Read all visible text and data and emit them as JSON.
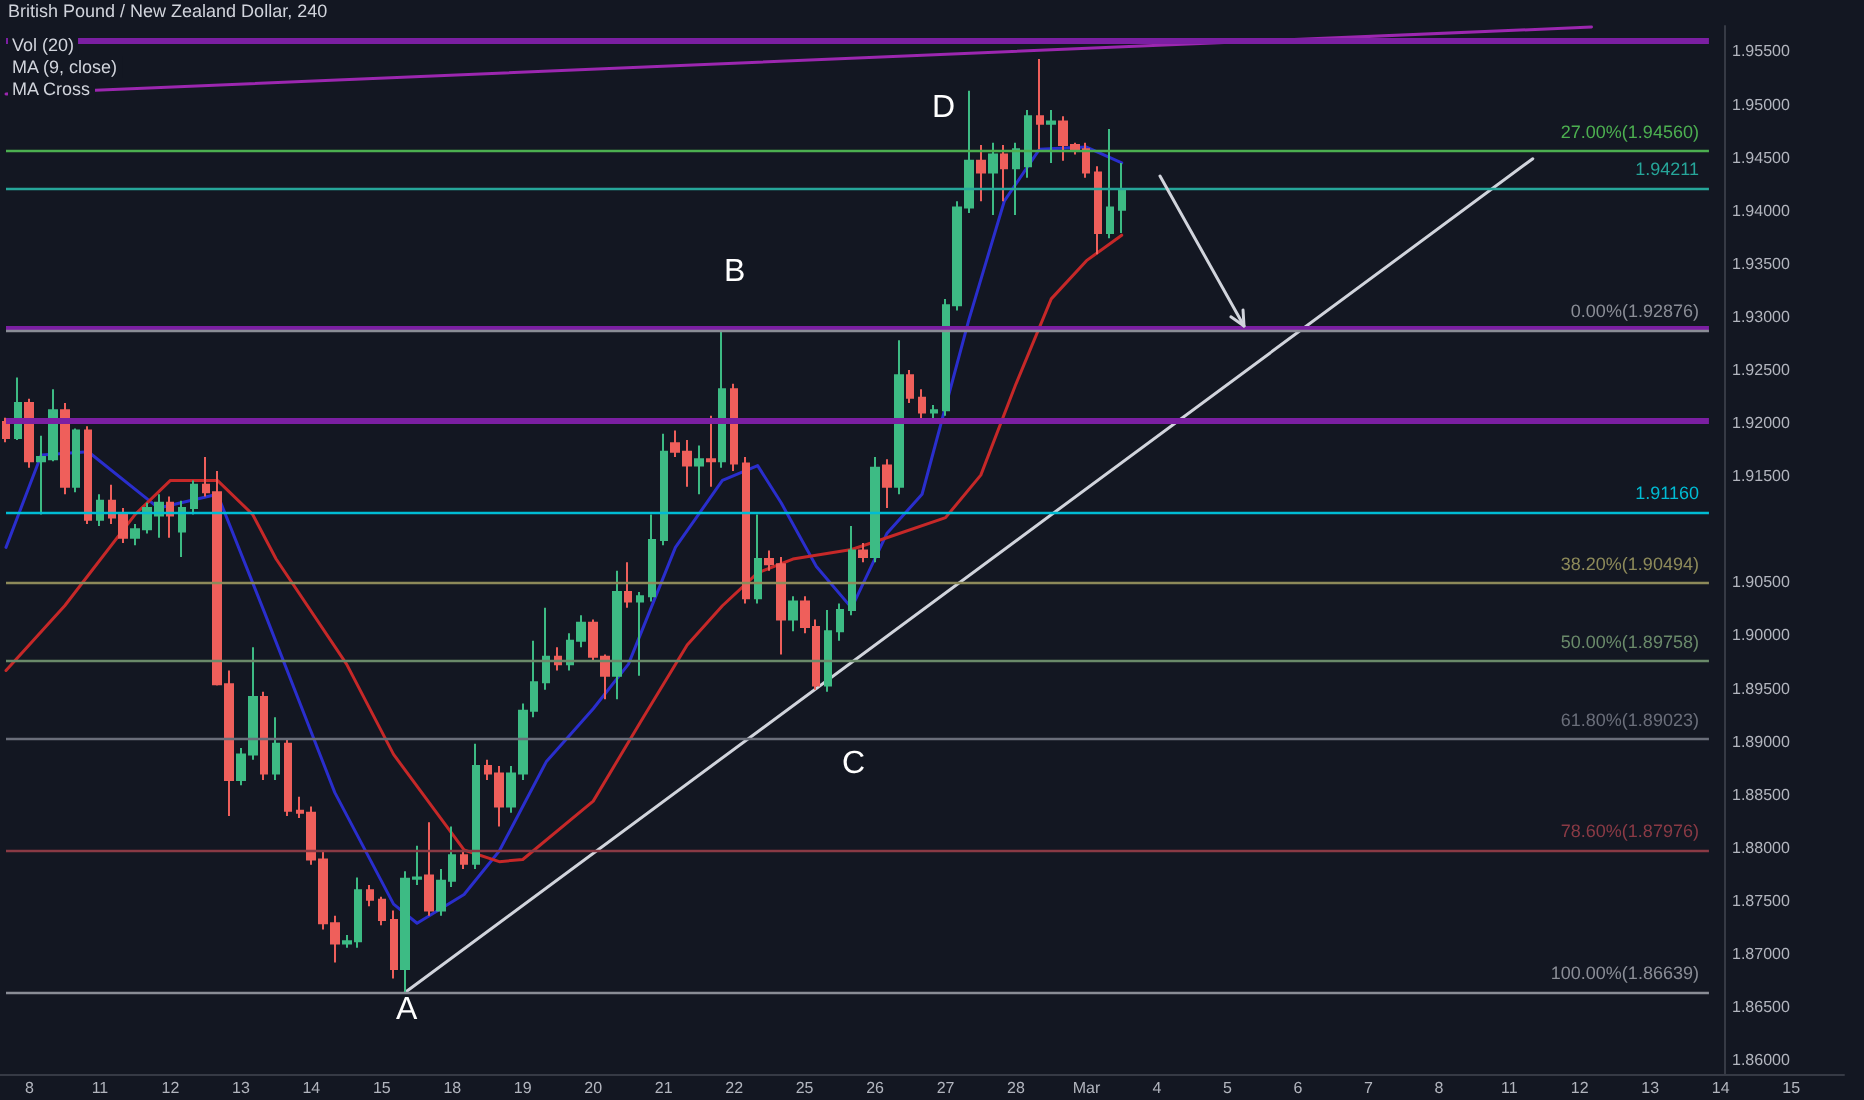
{
  "chart_data": {
    "type": "candlestick",
    "title": "British Pound / New Zealand Dollar, 240",
    "annotations": [
      "Vol (20)",
      "MA (9, close)",
      "MA Cross",
      "A",
      "B",
      "C",
      "D"
    ],
    "categories": [
      null,
      null,
      "8",
      null,
      null,
      null,
      null,
      null,
      "11",
      null,
      null,
      null,
      null,
      null,
      "12",
      null,
      null,
      null,
      null,
      null,
      "13",
      null,
      null,
      null,
      null,
      null,
      "14",
      null,
      null,
      null,
      null,
      null,
      "15",
      null,
      null,
      null,
      null,
      null,
      "18",
      null,
      null,
      null,
      null,
      null,
      "19",
      null,
      null,
      null,
      null,
      null,
      "20",
      null,
      null,
      null,
      null,
      null,
      "21",
      null,
      null,
      null,
      null,
      null,
      "22",
      null,
      null,
      null,
      null,
      null,
      "25",
      null,
      null,
      null,
      null,
      null,
      "26",
      null,
      null,
      null,
      null,
      null,
      "27",
      null,
      null,
      null,
      null,
      null,
      "28",
      null,
      null,
      null,
      null,
      null,
      "Mar",
      null,
      null,
      null,
      null,
      null,
      "4",
      null,
      null,
      null,
      null,
      null,
      "5",
      null,
      null,
      null,
      null,
      null,
      "6",
      null,
      null,
      null,
      null,
      null,
      "7",
      null,
      null,
      null,
      null,
      null,
      "8",
      null,
      null,
      null,
      null,
      null,
      "11",
      null,
      null,
      null,
      null,
      null,
      "12",
      null,
      null,
      null,
      null,
      null,
      "13",
      null,
      null,
      null,
      null,
      null,
      "14",
      null,
      null,
      null,
      null,
      null,
      "15",
      null,
      null,
      null,
      null
    ],
    "ylim": [
      1.8587,
      1.9574
    ],
    "yticks": [
      {
        "value": 1.86,
        "label": "1.86000"
      },
      {
        "value": 1.865,
        "label": "1.86500"
      },
      {
        "value": 1.87,
        "label": "1.87000"
      },
      {
        "value": 1.875,
        "label": "1.87500"
      },
      {
        "value": 1.88,
        "label": "1.88000"
      },
      {
        "value": 1.885,
        "label": "1.88500"
      },
      {
        "value": 1.89,
        "label": "1.89000"
      },
      {
        "value": 1.895,
        "label": "1.89500"
      },
      {
        "value": 1.9,
        "label": "1.90000"
      },
      {
        "value": 1.905,
        "label": "1.90500"
      },
      {
        "value": 1.915,
        "label": "1.91500"
      },
      {
        "value": 1.92,
        "label": "1.92000"
      },
      {
        "value": 1.925,
        "label": "1.92500"
      },
      {
        "value": 1.93,
        "label": "1.93000"
      },
      {
        "value": 1.935,
        "label": "1.93500"
      },
      {
        "value": 1.94,
        "label": "1.94000"
      },
      {
        "value": 1.945,
        "label": "1.94500"
      },
      {
        "value": 1.95,
        "label": "1.95000"
      },
      {
        "value": 1.955,
        "label": "1.95500"
      }
    ],
    "marker": "none",
    "line_style": "solid",
    "ref_lines": [
      {
        "axis": "y",
        "value": 1.9561,
        "color": "#7b1fa2"
      },
      {
        "axis": "y",
        "value": 1.9289,
        "color": "#7b1fa2"
      },
      {
        "axis": "y",
        "value": 1.9203,
        "color": "#7b1fa2"
      },
      {
        "axis": "y",
        "value": 1.9116,
        "label": "1.91160",
        "color": "#00bcd4"
      },
      {
        "axis": "y",
        "value": 1.94211,
        "label": "1.94211",
        "color": "#26a69a"
      },
      {
        "axis": "y",
        "value": 1.9456,
        "label": "27.00%(1.94560)",
        "color": "#4caf50"
      },
      {
        "axis": "y",
        "value": 1.92876,
        "label": "0.00%(1.92876)",
        "color": "#8a8d96"
      },
      {
        "axis": "y",
        "value": 1.90494,
        "label": "38.20%(1.90494)",
        "color": "#8d8a5a"
      },
      {
        "axis": "y",
        "value": 1.89758,
        "label": "50.00%(1.89758)",
        "color": "#6a8a6a"
      },
      {
        "axis": "y",
        "value": 1.89023,
        "label": "61.80%(1.89023)",
        "color": "#6a6e7a"
      },
      {
        "axis": "y",
        "value": 1.87976,
        "label": "78.60%(1.87976)",
        "color": "#8a3a45"
      },
      {
        "axis": "y",
        "value": 1.86639,
        "label": "100.00%(1.86639)",
        "color": "#8a8d96"
      }
    ],
    "series": [
      {
        "type": "candlestick",
        "colors": [
          "#ef5f5b",
          "#3dbb84",
          "#ef5f5b",
          "#3dbb84",
          "#3dbb84",
          "#ef5f5b",
          "#3dbb84",
          "#ef5f5b",
          "#3dbb84",
          "#ef5f5b",
          "#ef5f5b",
          "#3dbb84",
          "#3dbb84",
          "#3dbb84",
          "#ef5f5b",
          "#3dbb84",
          "#3dbb84",
          "#ef5f5b",
          "#ef5f5b",
          "#ef5f5b",
          "#3dbb84",
          "#3dbb84",
          "#ef5f5b",
          "#3dbb84",
          "#ef5f5b",
          "#ef5f5b",
          "#ef5f5b",
          "#ef5f5b",
          "#ef5f5b",
          "#3dbb84",
          "#3dbb84",
          "#ef5f5b",
          "#ef5f5b",
          "#ef5f5b",
          "#3dbb84",
          "#3dbb84",
          "#ef5f5b",
          "#3dbb84",
          "#3dbb84",
          "#ef5f5b",
          "#3dbb84",
          "#ef5f5b",
          "#ef5f5b",
          "#3dbb84",
          "#3dbb84",
          "#3dbb84",
          "#3dbb84",
          "#ef5f5b",
          "#3dbb84",
          "#3dbb84",
          "#ef5f5b",
          "#ef5f5b",
          "#3dbb84",
          "#ef5f5b",
          "#3dbb84",
          "#3dbb84",
          "#3dbb84",
          "#ef5f5b",
          "#ef5f5b",
          "#3dbb84",
          "#ef5f5b",
          "#3dbb84",
          "#ef5f5b",
          "#ef5f5b",
          "#3dbb84",
          "#ef5f5b",
          "#ef5f5b",
          "#3dbb84",
          "#ef5f5b",
          "#ef5f5b",
          "#3dbb84",
          "#3dbb84",
          "#3dbb84",
          "#ef5f5b",
          "#3dbb84",
          "#ef5f5b",
          "#3dbb84",
          "#ef5f5b",
          "#ef5f5b",
          "#3dbb84",
          "#3dbb84",
          "#3dbb84",
          "#3dbb84",
          "#ef5f5b",
          "#3dbb84",
          "#ef5f5b",
          "#3dbb84",
          "#3dbb84",
          "#ef5f5b",
          "#3dbb84",
          "#ef5f5b",
          "#ef5f5b",
          "#ef5f5b",
          "#ef5f5b",
          "#3dbb84",
          "#3dbb84",
          null,
          null,
          null,
          null,
          null,
          null,
          null,
          null,
          null,
          null,
          null,
          null,
          null,
          null,
          null,
          null,
          null,
          null,
          null,
          null,
          null,
          null,
          null,
          null,
          null,
          null,
          null,
          null,
          null,
          null,
          null,
          null,
          null,
          null,
          null,
          null,
          null,
          null,
          null,
          null,
          null,
          null,
          null,
          null,
          null,
          null,
          null,
          null,
          null,
          null,
          null,
          null,
          null,
          null,
          null,
          null,
          null,
          null,
          null,
          null,
          null
        ],
        "ohlc": [
          [
            1.9201,
            1.9205,
            1.9182,
            1.9186
          ],
          [
            1.9186,
            1.9243,
            1.9184,
            1.9219
          ],
          [
            1.9219,
            1.9223,
            1.9158,
            1.9164
          ],
          [
            1.9164,
            1.9188,
            1.9114,
            1.9168
          ],
          [
            1.9166,
            1.9232,
            1.9164,
            1.9212
          ],
          [
            1.9212,
            1.9219,
            1.9133,
            1.914
          ],
          [
            1.914,
            1.9195,
            1.9135,
            1.9193
          ],
          [
            1.9193,
            1.9197,
            1.9105,
            1.9109
          ],
          [
            1.9109,
            1.9133,
            1.9103,
            1.9127
          ],
          [
            1.9127,
            1.9142,
            1.9105,
            1.9111
          ],
          [
            1.9114,
            1.912,
            1.9087,
            1.9092
          ],
          [
            1.9092,
            1.9105,
            1.9085,
            1.91
          ],
          [
            1.91,
            1.9125,
            1.9096,
            1.912
          ],
          [
            1.9113,
            1.9133,
            1.9092,
            1.9125
          ],
          [
            1.9125,
            1.9131,
            1.9092,
            1.9113
          ],
          [
            1.9098,
            1.9127,
            1.9074,
            1.912
          ],
          [
            1.912,
            1.9146,
            1.9114,
            1.9142
          ],
          [
            1.9142,
            1.9168,
            1.9131,
            1.9135
          ],
          [
            1.9135,
            1.9155,
            1.8953,
            1.8954
          ],
          [
            1.8954,
            1.8967,
            1.883,
            1.8864
          ],
          [
            1.8864,
            1.8894,
            1.8859,
            1.8888
          ],
          [
            1.8888,
            1.8989,
            1.8883,
            1.8942
          ],
          [
            1.8942,
            1.8947,
            1.8864,
            1.887
          ],
          [
            1.887,
            1.8923,
            1.8864,
            1.8898
          ],
          [
            1.8898,
            1.8903,
            1.883,
            1.8835
          ],
          [
            1.8835,
            1.8848,
            1.8828,
            1.8833
          ],
          [
            1.8833,
            1.8839,
            1.8784,
            1.8789
          ],
          [
            1.8789,
            1.8798,
            1.8723,
            1.8729
          ],
          [
            1.8729,
            1.8736,
            1.8692,
            1.871
          ],
          [
            1.871,
            1.8718,
            1.8706,
            1.8712
          ],
          [
            1.8712,
            1.8772,
            1.8706,
            1.876
          ],
          [
            1.876,
            1.8765,
            1.8745,
            1.8751
          ],
          [
            1.8751,
            1.8754,
            1.8727,
            1.8732
          ],
          [
            1.8732,
            1.8741,
            1.8677,
            1.8686
          ],
          [
            1.8686,
            1.8778,
            1.8664,
            1.8771
          ],
          [
            1.8771,
            1.8802,
            1.8765,
            1.8772
          ],
          [
            1.8774,
            1.8824,
            1.8736,
            1.8741
          ],
          [
            1.8741,
            1.878,
            1.8736,
            1.8769
          ],
          [
            1.8769,
            1.882,
            1.8763,
            1.8793
          ],
          [
            1.8793,
            1.8798,
            1.878,
            1.8785
          ],
          [
            1.8785,
            1.8898,
            1.878,
            1.8877
          ],
          [
            1.8877,
            1.8883,
            1.8864,
            1.887
          ],
          [
            1.887,
            1.8877,
            1.882,
            1.8839
          ],
          [
            1.8839,
            1.8877,
            1.8833,
            1.887
          ],
          [
            1.887,
            1.8936,
            1.8864,
            1.8929
          ],
          [
            1.8929,
            1.8995,
            1.8923,
            1.8956
          ],
          [
            1.8956,
            1.9026,
            1.8949,
            1.898
          ],
          [
            1.898,
            1.8989,
            1.8967,
            1.8973
          ],
          [
            1.8973,
            1.9002,
            1.8967,
            1.8995
          ],
          [
            1.8995,
            1.9019,
            1.8989,
            1.9012
          ],
          [
            1.9012,
            1.9015,
            1.8975,
            1.898
          ],
          [
            1.898,
            1.8982,
            1.894,
            1.8962
          ],
          [
            1.8962,
            1.9061,
            1.894,
            1.9041
          ],
          [
            1.9041,
            1.9069,
            1.9026,
            1.9032
          ],
          [
            1.9032,
            1.9041,
            1.8962,
            1.9037
          ],
          [
            1.9037,
            1.9114,
            1.9032,
            1.909
          ],
          [
            1.909,
            1.919,
            1.9085,
            1.9173
          ],
          [
            1.9181,
            1.9193,
            1.9168,
            1.9173
          ],
          [
            1.9173,
            1.9184,
            1.914,
            1.916
          ],
          [
            1.916,
            1.9179,
            1.9133,
            1.9166
          ],
          [
            1.9166,
            1.9207,
            1.914,
            1.9164
          ],
          [
            1.9164,
            1.9288,
            1.9158,
            1.9232
          ],
          [
            1.9232,
            1.9237,
            1.9155,
            1.9162
          ],
          [
            1.9162,
            1.9168,
            1.903,
            1.9035
          ],
          [
            1.9035,
            1.9114,
            1.903,
            1.9072
          ],
          [
            1.9072,
            1.908,
            1.9061,
            1.9067
          ],
          [
            1.9067,
            1.9074,
            1.8982,
            1.9015
          ],
          [
            1.9015,
            1.9037,
            1.9004,
            1.9032
          ],
          [
            1.9032,
            1.9037,
            1.9002,
            1.9008
          ],
          [
            1.9008,
            1.9015,
            1.8949,
            1.8953
          ],
          [
            1.8953,
            1.9024,
            1.8947,
            1.9004
          ],
          [
            1.9004,
            1.903,
            1.8995,
            1.9024
          ],
          [
            1.9024,
            1.9103,
            1.9019,
            1.908
          ],
          [
            1.908,
            1.9087,
            1.9069,
            1.9074
          ],
          [
            1.9074,
            1.9168,
            1.9069,
            1.9158
          ],
          [
            1.916,
            1.9166,
            1.912,
            1.914
          ],
          [
            1.914,
            1.9278,
            1.9133,
            1.9245
          ],
          [
            1.9245,
            1.925,
            1.9219,
            1.9224
          ],
          [
            1.9224,
            1.9232,
            1.9201,
            1.921
          ],
          [
            1.921,
            1.9217,
            1.9201,
            1.9212
          ],
          [
            1.9212,
            1.9317,
            1.9207,
            1.9311
          ],
          [
            1.9311,
            1.9409,
            1.9306,
            1.9403
          ],
          [
            1.9403,
            1.9513,
            1.9398,
            1.9447
          ],
          [
            1.9447,
            1.9462,
            1.9409,
            1.9436
          ],
          [
            1.9436,
            1.9464,
            1.9396,
            1.9453
          ],
          [
            1.9453,
            1.9462,
            1.9409,
            1.944
          ],
          [
            1.944,
            1.9464,
            1.9396,
            1.9458
          ],
          [
            1.9442,
            1.9495,
            1.9431,
            1.9489
          ],
          [
            1.9489,
            1.9543,
            1.9458,
            1.9482
          ],
          [
            1.9482,
            1.9495,
            1.9445,
            1.9484
          ],
          [
            1.9484,
            1.9489,
            1.9447,
            1.9462
          ],
          [
            1.9462,
            1.9464,
            1.9453,
            1.9458
          ],
          [
            1.9458,
            1.9464,
            1.9431,
            1.9436
          ],
          [
            1.9436,
            1.9442,
            1.9359,
            1.9379
          ],
          [
            1.9379,
            1.9477,
            1.9374,
            1.9403
          ],
          [
            1.9401,
            1.9445,
            1.9379,
            1.942
          ],
          null,
          null,
          null,
          null,
          null,
          null,
          null,
          null,
          null,
          null,
          null,
          null,
          null,
          null,
          null,
          null,
          null,
          null,
          null,
          null,
          null,
          null,
          null,
          null,
          null,
          null,
          null,
          null,
          null,
          null,
          null,
          null,
          null,
          null,
          null,
          null,
          null,
          null,
          null,
          null,
          null,
          null,
          null,
          null,
          null,
          null,
          null,
          null,
          null,
          null,
          null,
          null,
          null,
          null,
          null,
          null,
          null,
          null,
          null,
          null,
          null
        ]
      },
      {
        "type": "line",
        "color": "#2a2ecd",
        "values": [
          1.9083,
          null,
          null,
          1.917,
          null,
          null,
          null,
          1.9173,
          null,
          null,
          null,
          null,
          null,
          1.912,
          null,
          null,
          null,
          null,
          1.9133,
          null,
          null,
          null,
          1.9022,
          null,
          null,
          null,
          null,
          null,
          1.8852,
          null,
          null,
          null,
          null,
          1.8747,
          null,
          1.8729,
          null,
          null,
          null,
          1.8756,
          null,
          null,
          1.8797,
          null,
          null,
          null,
          1.8881,
          null,
          null,
          null,
          1.8931,
          null,
          null,
          1.8973,
          null,
          null,
          null,
          1.9083,
          null,
          null,
          null,
          1.9146,
          null,
          null,
          1.916,
          null,
          1.9125,
          null,
          null,
          1.9065,
          null,
          null,
          1.9026,
          null,
          null,
          1.9096,
          null,
          null,
          1.9133,
          null,
          null,
          null,
          1.9298,
          null,
          null,
          1.9409,
          null,
          null,
          1.9458,
          null,
          null,
          null,
          1.946,
          null,
          null,
          1.9445,
          null,
          null,
          null,
          null,
          null,
          null,
          null,
          null,
          null,
          null,
          null,
          null,
          null,
          null,
          null,
          null,
          null,
          null,
          null,
          null,
          null,
          null,
          null,
          null,
          null,
          null,
          null,
          null,
          null,
          null,
          null,
          null,
          null,
          null,
          null,
          null,
          null,
          null,
          null,
          null,
          null,
          null,
          null,
          null,
          null,
          null,
          null,
          null,
          null,
          null,
          null,
          null,
          null,
          null,
          null,
          null,
          null,
          null,
          null,
          null,
          null
        ]
      },
      {
        "type": "line",
        "color": "#c62828",
        "values": [
          1.8967,
          null,
          null,
          null,
          null,
          1.9028,
          null,
          null,
          null,
          null,
          null,
          1.9114,
          null,
          null,
          1.9146,
          null,
          null,
          null,
          1.9146,
          null,
          null,
          1.9114,
          null,
          1.9072,
          null,
          null,
          null,
          null,
          null,
          1.8973,
          null,
          null,
          null,
          1.8888,
          null,
          null,
          null,
          null,
          null,
          1.8798,
          null,
          null,
          1.8787,
          null,
          1.8789,
          null,
          null,
          null,
          null,
          null,
          1.8844,
          null,
          null,
          null,
          1.8918,
          null,
          null,
          null,
          1.8991,
          null,
          null,
          1.9028,
          null,
          null,
          1.9059,
          null,
          null,
          1.9072,
          null,
          null,
          null,
          null,
          1.9081,
          null,
          null,
          1.9092,
          null,
          null,
          null,
          null,
          1.9111,
          null,
          null,
          1.9151,
          null,
          null,
          1.9237,
          null,
          null,
          1.9317,
          null,
          null,
          1.9353,
          null,
          null,
          1.9377,
          null,
          null,
          null,
          null,
          null,
          null,
          null,
          null,
          null,
          null,
          null,
          null,
          null,
          null,
          null,
          null,
          null,
          null,
          null,
          null,
          null,
          null,
          null,
          null,
          null,
          null,
          null,
          null,
          null,
          null,
          null,
          null,
          null,
          null,
          null,
          null,
          null,
          null,
          null,
          null,
          null,
          null,
          null,
          null,
          null,
          null,
          null,
          null,
          null,
          null,
          null,
          null,
          null,
          null,
          null,
          null,
          null,
          null,
          null,
          null,
          null
        ]
      },
      {
        "type": "line",
        "color": "#d1d4dc",
        "values": [
          null,
          null,
          null,
          null,
          null,
          null,
          null,
          null,
          null,
          null,
          null,
          null,
          null,
          null,
          null,
          null,
          null,
          null,
          null,
          null,
          null,
          null,
          null,
          null,
          null,
          null,
          null,
          null,
          null,
          null,
          null,
          null,
          null,
          null,
          1.8664,
          null,
          null,
          null,
          null,
          null,
          null,
          null,
          null,
          null,
          null,
          null,
          null,
          null,
          null,
          null,
          null,
          null,
          null,
          null,
          null,
          null,
          null,
          null,
          null,
          null,
          null,
          null,
          null,
          null,
          null,
          null,
          null,
          null,
          null,
          null,
          null,
          null,
          null,
          null,
          null,
          null,
          null,
          null,
          null,
          null,
          null,
          null,
          null,
          null,
          null,
          null,
          null,
          null,
          null,
          null,
          null,
          null,
          null,
          null,
          null,
          null,
          null,
          null,
          null,
          null,
          null,
          null,
          null,
          null,
          null,
          null,
          null,
          null,
          null,
          null,
          null,
          null,
          null,
          null,
          null,
          null,
          null,
          null,
          null,
          null,
          null,
          null,
          null,
          null,
          null,
          null,
          null,
          null,
          null,
          null,
          1.9449,
          null,
          null,
          null,
          null,
          null,
          null,
          null,
          null,
          null,
          null,
          null,
          null,
          null,
          null,
          null,
          null,
          null,
          null,
          null,
          null,
          null,
          null,
          null,
          null,
          null,
          null
        ]
      },
      {
        "type": "line",
        "color": "#9c27b0",
        "values": [
          1.951,
          null,
          null,
          null,
          null,
          null,
          null,
          null,
          null,
          null,
          null,
          null,
          null,
          null,
          null,
          null,
          null,
          null,
          null,
          null,
          null,
          null,
          null,
          null,
          null,
          null,
          null,
          null,
          null,
          null,
          null,
          null,
          null,
          null,
          null,
          null,
          null,
          null,
          null,
          null,
          null,
          null,
          null,
          null,
          null,
          null,
          null,
          null,
          null,
          null,
          null,
          null,
          null,
          null,
          null,
          null,
          null,
          null,
          null,
          null,
          null,
          null,
          null,
          null,
          null,
          null,
          null,
          null,
          null,
          null,
          null,
          null,
          null,
          null,
          null,
          null,
          null,
          null,
          null,
          null,
          null,
          null,
          null,
          null,
          null,
          null,
          null,
          null,
          null,
          null,
          null,
          null,
          null,
          null,
          null,
          null,
          null,
          null,
          null,
          null,
          null,
          null,
          null,
          null,
          null,
          null,
          null,
          null,
          null,
          null,
          null,
          null,
          null,
          null,
          null,
          null,
          null,
          null,
          null,
          null,
          null,
          null,
          null,
          null,
          null,
          null,
          null,
          null,
          null,
          null,
          null,
          null,
          null,
          null,
          null,
          1.9573,
          null,
          null,
          null,
          null,
          null,
          null,
          null,
          null,
          null,
          null,
          null,
          null,
          null,
          null,
          null,
          null,
          null,
          null,
          null,
          null,
          null
        ]
      }
    ]
  }
}
